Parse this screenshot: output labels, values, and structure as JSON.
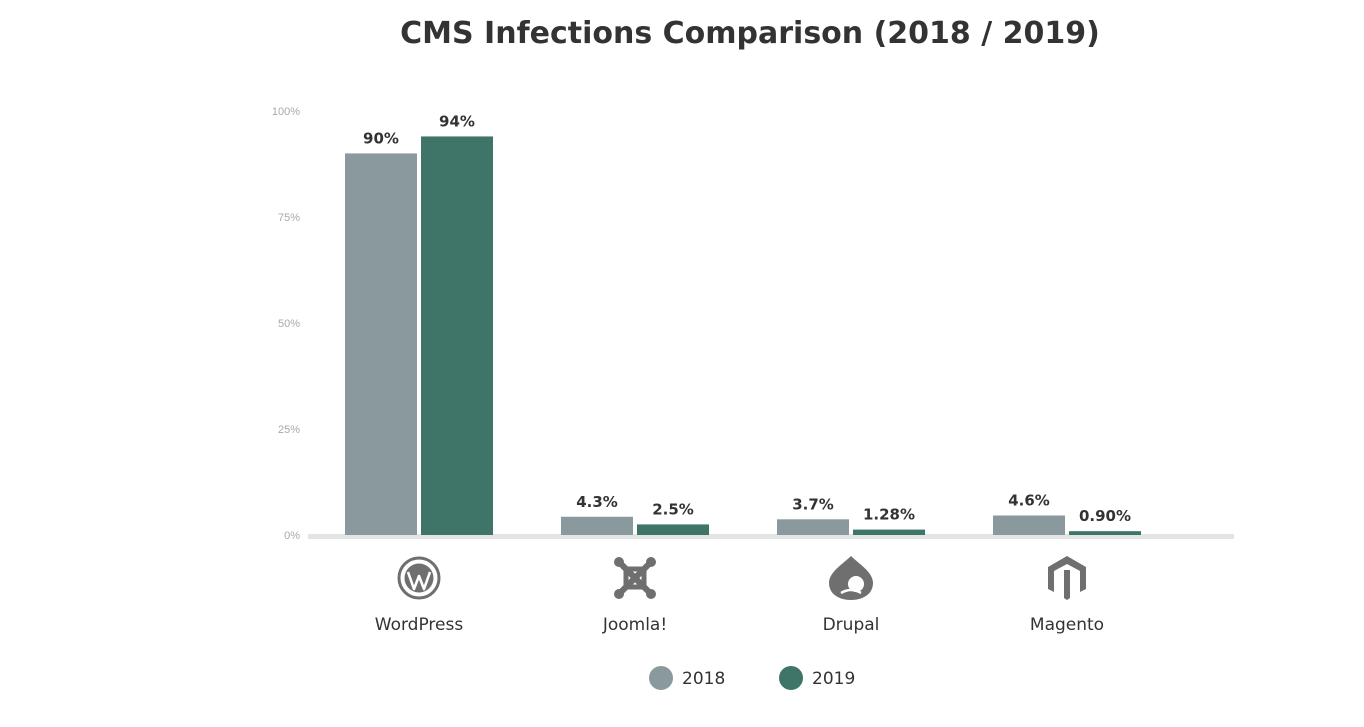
{
  "chart_data": {
    "type": "bar",
    "title": "CMS Infections Comparison (2018 / 2019)",
    "xlabel": "",
    "ylabel": "",
    "categories": [
      "WordPress",
      "Joomla!",
      "Drupal",
      "Magento"
    ],
    "category_icons": [
      "wordpress-icon",
      "joomla-icon",
      "drupal-icon",
      "magento-icon"
    ],
    "series": [
      {
        "name": "2018",
        "color": "#8a999d",
        "values": [
          90,
          4.3,
          3.7,
          4.6
        ],
        "labels": [
          "90%",
          "4.3%",
          "3.7%",
          "4.6%"
        ]
      },
      {
        "name": "2019",
        "color": "#3f7468",
        "values": [
          94,
          2.5,
          1.28,
          0.9
        ],
        "labels": [
          "94%",
          "2.5%",
          "1.28%",
          "0.90%"
        ]
      }
    ],
    "ylim": [
      0,
      100
    ],
    "yticks": [
      0,
      25,
      50,
      75,
      100
    ],
    "ytick_labels": [
      "0%",
      "25%",
      "50%",
      "75%",
      "100%"
    ],
    "grid": false,
    "legend": "bottom-center"
  }
}
